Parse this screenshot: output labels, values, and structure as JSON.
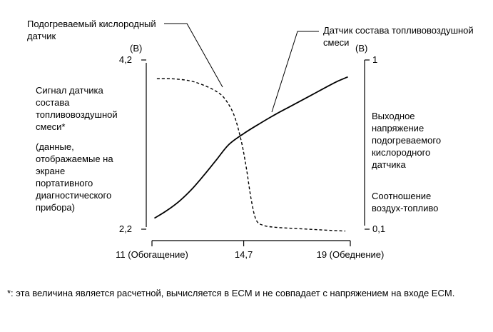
{
  "chart_data": {
    "type": "line",
    "x_axis": {
      "range": [
        11,
        19
      ],
      "ticks": [
        {
          "value": 11,
          "label": "11 (Обогащение)"
        },
        {
          "value": 14.7,
          "label": "14,7"
        },
        {
          "value": 19,
          "label": "19 (Обеднение)"
        }
      ]
    },
    "left_axis": {
      "unit": "(В)",
      "range": [
        2.2,
        4.2
      ],
      "ticks": [
        {
          "value": 4.2,
          "label": "4,2"
        },
        {
          "value": 2.2,
          "label": "2,2"
        }
      ],
      "label_lines": [
        "Сигнал датчика",
        "состава",
        "топливовоздушной",
        "смеси*"
      ],
      "note_lines": [
        "(данные,",
        "отображаемые на",
        "экране",
        "портативного",
        "диагностического",
        "прибора)"
      ]
    },
    "right_axis": {
      "unit": "(В)",
      "range": [
        0.1,
        1
      ],
      "ticks": [
        {
          "value": 1,
          "label": "1"
        },
        {
          "value": 0.1,
          "label": "0,1"
        }
      ],
      "label_lines": [
        "Выходное",
        "напряжение",
        "подогреваемого",
        "кислородного",
        "датчика"
      ],
      "ratio_lines": [
        "Соотношение",
        "воздух-топливо"
      ]
    },
    "series": [
      {
        "name": "Датчик состава топливовоздушной смеси",
        "name_lines": [
          "Датчик состава топливовоздушной",
          "смеси"
        ],
        "axis": "left",
        "style": "solid",
        "x": [
          11.1,
          11.6,
          12.1,
          12.6,
          13.1,
          13.6,
          14.1,
          14.7,
          15.3,
          16.0,
          16.7,
          17.4,
          18.1,
          18.5,
          18.9
        ],
        "y": [
          2.33,
          2.42,
          2.53,
          2.67,
          2.84,
          3.02,
          3.2,
          3.33,
          3.44,
          3.56,
          3.67,
          3.78,
          3.89,
          3.95,
          4.0
        ]
      },
      {
        "name": "Подогреваемый кислородный датчик",
        "name_lines": [
          "Подогреваемый кислородный",
          "датчик"
        ],
        "axis": "right",
        "style": "dashed",
        "x": [
          11.2,
          11.8,
          12.5,
          13.0,
          13.5,
          13.9,
          14.3,
          14.6,
          14.8,
          15.0,
          15.2,
          15.5,
          16.0,
          16.6,
          17.3,
          18.0,
          18.8
        ],
        "y": [
          0.9,
          0.9,
          0.89,
          0.87,
          0.84,
          0.8,
          0.71,
          0.57,
          0.43,
          0.26,
          0.15,
          0.12,
          0.11,
          0.105,
          0.1,
          0.095,
          0.09
        ]
      }
    ],
    "grid": false,
    "footnote": "*: эта величина является расчетной, вычисляется в ECM и не совпадает с напряжением на входе ECM."
  }
}
